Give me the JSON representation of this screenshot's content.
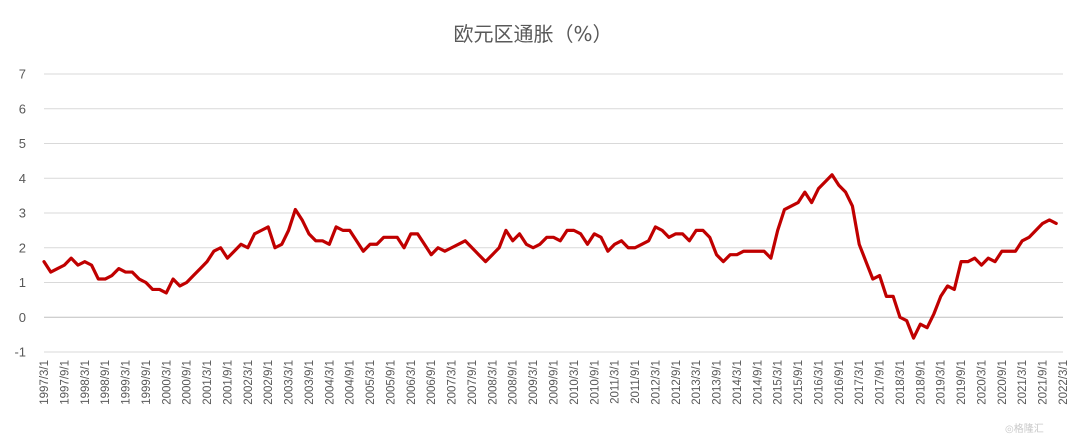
{
  "chart_data": {
    "type": "line",
    "title": "欧元区通胀（%）",
    "xlabel": "",
    "ylabel": "",
    "ylim": [
      -1,
      7
    ],
    "yticks": [
      -1,
      0,
      1,
      2,
      3,
      4,
      5,
      6,
      7
    ],
    "grid": "horizontal",
    "legend": "none",
    "x_tick_labels": [
      "1997/3/1",
      "1997/9/1",
      "1998/3/1",
      "1998/9/1",
      "1999/3/1",
      "1999/9/1",
      "2000/3/1",
      "2000/9/1",
      "2001/3/1",
      "2001/9/1",
      "2002/3/1",
      "2002/9/1",
      "2003/3/1",
      "2003/9/1",
      "2004/3/1",
      "2004/9/1",
      "2005/3/1",
      "2005/9/1",
      "2006/3/1",
      "2006/9/1",
      "2007/3/1",
      "2007/9/1",
      "2008/3/1",
      "2008/9/1",
      "2009/3/1",
      "2009/9/1",
      "2010/3/1",
      "2010/9/1",
      "2011/3/1",
      "2011/9/1",
      "2012/3/1",
      "2012/9/1",
      "2013/3/1",
      "2013/9/1",
      "2014/3/1",
      "2014/9/1",
      "2015/3/1",
      "2015/9/1",
      "2016/3/1",
      "2016/9/1",
      "2017/3/1",
      "2017/9/1",
      "2018/3/1",
      "2018/9/1",
      "2019/3/1",
      "2019/9/1",
      "2020/3/1",
      "2020/9/1",
      "2021/3/1",
      "2021/9/1",
      "2022/3/1"
    ],
    "series": [
      {
        "color": "#c00000",
        "points": [
          [
            "1997/3/1",
            1.6
          ],
          [
            "1997/5/1",
            1.3
          ],
          [
            "1997/7/1",
            1.4
          ],
          [
            "1997/9/1",
            1.5
          ],
          [
            "1997/11/1",
            1.7
          ],
          [
            "1998/1/1",
            1.5
          ],
          [
            "1998/3/1",
            1.6
          ],
          [
            "1998/5/1",
            1.5
          ],
          [
            "1998/7/1",
            1.1
          ],
          [
            "1998/9/1",
            1.1
          ],
          [
            "1998/11/1",
            1.2
          ],
          [
            "1999/1/1",
            1.4
          ],
          [
            "1999/3/1",
            1.3
          ],
          [
            "1999/5/1",
            1.3
          ],
          [
            "1999/7/1",
            1.1
          ],
          [
            "1999/9/1",
            1.0
          ],
          [
            "1999/11/1",
            0.8
          ],
          [
            "2000/1/1",
            0.8
          ],
          [
            "2000/3/1",
            0.7
          ],
          [
            "2000/5/1",
            1.1
          ],
          [
            "2000/7/1",
            0.9
          ],
          [
            "2000/9/1",
            1.0
          ],
          [
            "2000/11/1",
            1.2
          ],
          [
            "2001/1/1",
            1.4
          ],
          [
            "2001/3/1",
            1.6
          ],
          [
            "2001/5/1",
            1.9
          ],
          [
            "2001/7/1",
            2.0
          ],
          [
            "2001/9/1",
            1.7
          ],
          [
            "2001/11/1",
            1.9
          ],
          [
            "2002/1/1",
            2.1
          ],
          [
            "2002/3/1",
            2.0
          ],
          [
            "2002/5/1",
            2.4
          ],
          [
            "2002/7/1",
            2.5
          ],
          [
            "2002/9/1",
            2.6
          ],
          [
            "2002/11/1",
            2.0
          ],
          [
            "2003/1/1",
            2.1
          ],
          [
            "2003/3/1",
            2.5
          ],
          [
            "2003/5/1",
            3.1
          ],
          [
            "2003/7/1",
            2.8
          ],
          [
            "2003/9/1",
            2.4
          ],
          [
            "2003/11/1",
            2.2
          ],
          [
            "2004/1/1",
            2.2
          ],
          [
            "2004/3/1",
            2.1
          ],
          [
            "2004/5/1",
            2.6
          ],
          [
            "2004/7/1",
            2.5
          ],
          [
            "2004/9/1",
            2.5
          ],
          [
            "2004/11/1",
            2.2
          ],
          [
            "2005/1/1",
            1.9
          ],
          [
            "2005/3/1",
            2.1
          ],
          [
            "2005/5/1",
            2.1
          ],
          [
            "2005/7/1",
            2.3
          ],
          [
            "2005/9/1",
            2.3
          ],
          [
            "2005/11/1",
            2.3
          ],
          [
            "2006/1/1",
            2.0
          ],
          [
            "2006/3/1",
            2.4
          ],
          [
            "2006/5/1",
            2.4
          ],
          [
            "2006/7/1",
            2.1
          ],
          [
            "2006/9/1",
            1.8
          ],
          [
            "2006/11/1",
            2.0
          ],
          [
            "2007/1/1",
            1.9
          ],
          [
            "2007/3/1",
            2.0
          ],
          [
            "2007/5/1",
            2.1
          ],
          [
            "2007/7/1",
            2.2
          ],
          [
            "2007/9/1",
            2.0
          ],
          [
            "2007/11/1",
            1.8
          ],
          [
            "2008/1/1",
            1.6
          ],
          [
            "2008/3/1",
            1.8
          ],
          [
            "2008/5/1",
            2.0
          ],
          [
            "2008/7/1",
            2.5
          ],
          [
            "2008/9/1",
            2.2
          ],
          [
            "2008/11/1",
            2.4
          ],
          [
            "2009/1/1",
            2.1
          ],
          [
            "2009/3/1",
            2.0
          ],
          [
            "2009/5/1",
            2.1
          ],
          [
            "2009/7/1",
            2.3
          ],
          [
            "2009/9/1",
            2.3
          ],
          [
            "2009/11/1",
            2.2
          ],
          [
            "2010/1/1",
            2.5
          ],
          [
            "2010/3/1",
            2.5
          ],
          [
            "2010/5/1",
            2.4
          ],
          [
            "2010/7/1",
            2.1
          ],
          [
            "2010/9/1",
            2.4
          ],
          [
            "2010/11/1",
            2.3
          ],
          [
            "2011/1/1",
            1.9
          ],
          [
            "2011/3/1",
            2.1
          ],
          [
            "2011/5/1",
            2.2
          ],
          [
            "2011/7/1",
            2.0
          ],
          [
            "2011/9/1",
            2.0
          ],
          [
            "2011/11/1",
            2.1
          ],
          [
            "2012/1/1",
            2.2
          ],
          [
            "2012/3/1",
            2.6
          ],
          [
            "2012/5/1",
            2.5
          ],
          [
            "2012/7/1",
            2.3
          ],
          [
            "2012/9/1",
            2.4
          ],
          [
            "2012/11/1",
            2.4
          ],
          [
            "2013/1/1",
            2.2
          ],
          [
            "2013/3/1",
            2.5
          ],
          [
            "2013/5/1",
            2.5
          ],
          [
            "2013/7/1",
            2.3
          ],
          [
            "2013/9/1",
            1.8
          ],
          [
            "2013/11/1",
            1.6
          ],
          [
            "2014/1/1",
            1.8
          ],
          [
            "2014/3/1",
            1.8
          ],
          [
            "2014/5/1",
            1.9
          ],
          [
            "2014/7/1",
            1.9
          ],
          [
            "2014/9/1",
            1.9
          ],
          [
            "2014/11/1",
            1.9
          ],
          [
            "2015/1/1",
            1.7
          ],
          [
            "2015/3/1",
            2.5
          ],
          [
            "2015/5/1",
            3.1
          ],
          [
            "2015/7/1",
            3.2
          ],
          [
            "2015/9/1",
            3.3
          ],
          [
            "2015/11/1",
            3.6
          ],
          [
            "2016/1/1",
            3.3
          ],
          [
            "2016/3/1",
            3.7
          ],
          [
            "2016/5/1",
            3.9
          ],
          [
            "2016/7/1",
            4.1
          ],
          [
            "2016/9/1",
            3.8
          ],
          [
            "2016/11/1",
            3.6
          ],
          [
            "2017/1/1",
            3.2
          ],
          [
            "2017/3/1",
            2.1
          ],
          [
            "2017/5/1",
            1.6
          ],
          [
            "2017/7/1",
            1.1
          ],
          [
            "2017/9/1",
            1.2
          ],
          [
            "2017/11/1",
            0.6
          ],
          [
            "2018/1/1",
            0.6
          ],
          [
            "2018/3/1",
            0.0
          ],
          [
            "2018/5/1",
            -0.1
          ],
          [
            "2018/7/1",
            -0.6
          ],
          [
            "2018/9/1",
            -0.2
          ],
          [
            "2018/11/1",
            -0.3
          ],
          [
            "2019/1/1",
            0.1
          ],
          [
            "2019/3/1",
            0.6
          ],
          [
            "2019/5/1",
            0.9
          ],
          [
            "2019/7/1",
            0.8
          ],
          [
            "2019/9/1",
            1.6
          ],
          [
            "2019/11/1",
            1.6
          ],
          [
            "2020/1/1",
            1.7
          ],
          [
            "2020/3/1",
            1.5
          ],
          [
            "2020/5/1",
            1.7
          ],
          [
            "2020/7/1",
            1.6
          ],
          [
            "2020/9/1",
            1.9
          ],
          [
            "2020/11/1",
            1.9
          ],
          [
            "2021/1/1",
            1.9
          ],
          [
            "2021/3/1",
            2.2
          ],
          [
            "2021/5/1",
            2.3
          ],
          [
            "2021/7/1",
            2.5
          ],
          [
            "2021/9/1",
            2.7
          ],
          [
            "2021/11/1",
            2.8
          ],
          [
            "2022/1/1",
            2.7
          ]
        ]
      }
    ]
  }
}
